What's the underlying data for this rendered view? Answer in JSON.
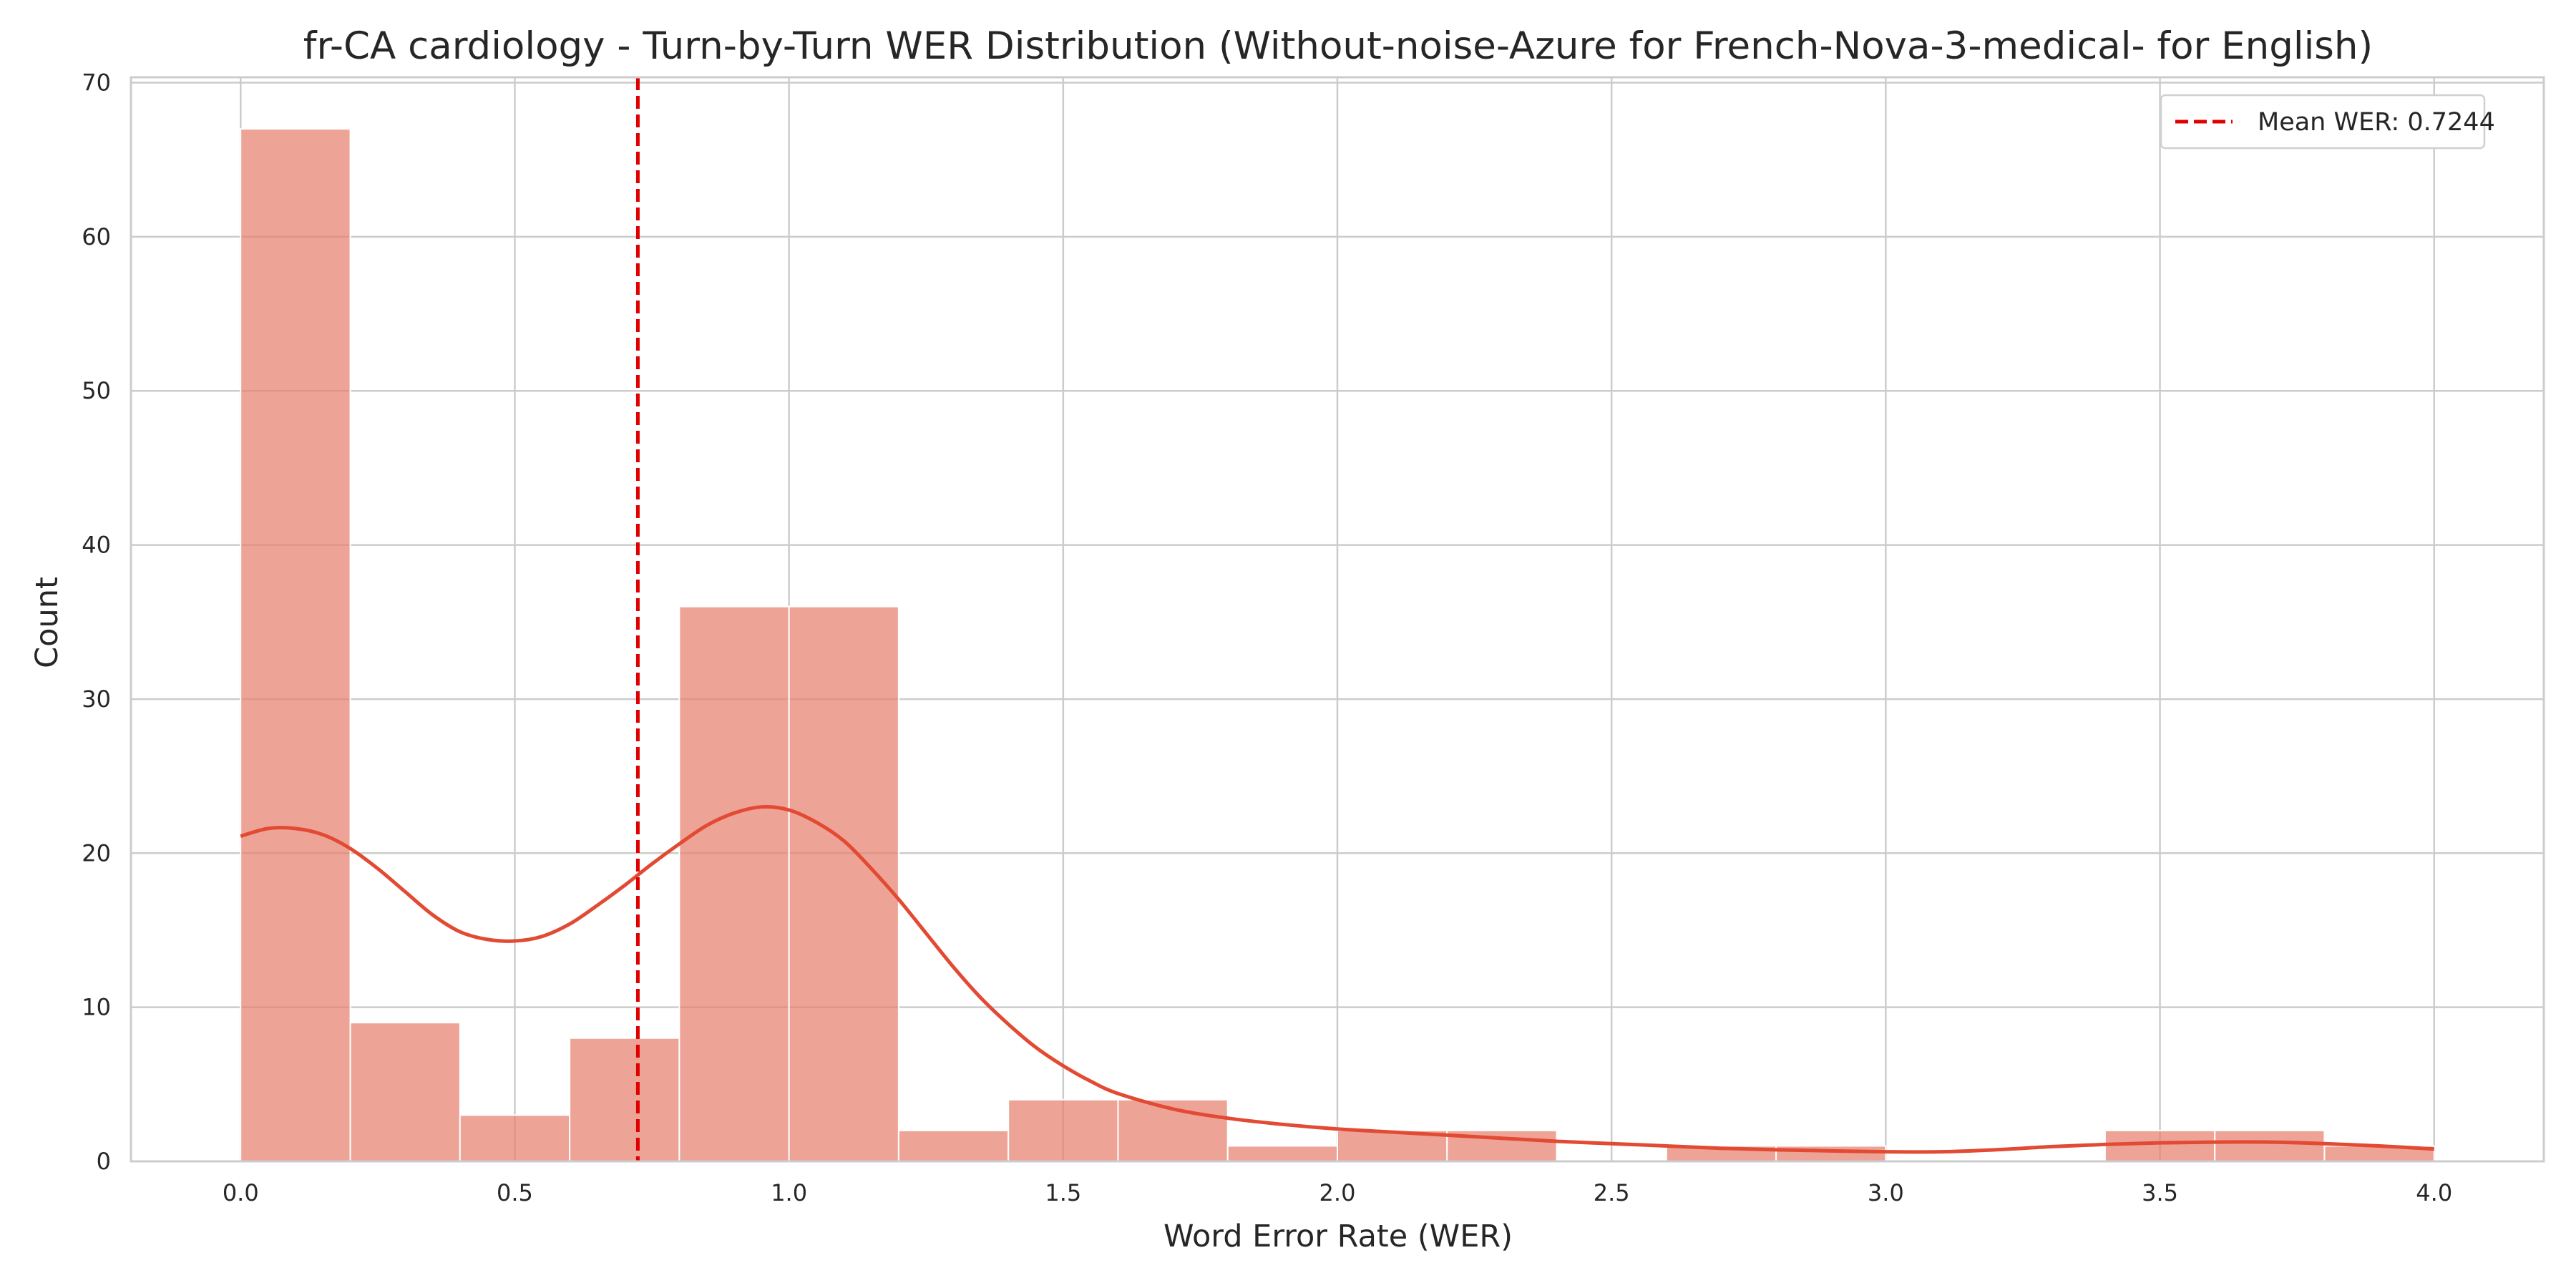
{
  "chart_data": {
    "type": "bar",
    "title": "fr-CA cardiology - Turn-by-Turn WER Distribution (Without-noise-Azure for French-Nova-3-medical- for English)",
    "xlabel": "Word Error Rate (WER)",
    "ylabel": "Count",
    "xlim": [
      -0.2,
      4.2
    ],
    "ylim": [
      0,
      70.35
    ],
    "x_ticks": [
      "0.0",
      "0.5",
      "1.0",
      "1.5",
      "2.0",
      "2.5",
      "3.0",
      "3.5",
      "4.0"
    ],
    "y_ticks": [
      "0",
      "10",
      "20",
      "30",
      "40",
      "50",
      "60",
      "70"
    ],
    "grid": true,
    "bin_width": 0.2,
    "bin_edges": [
      0.0,
      0.2,
      0.4,
      0.6,
      0.8,
      1.0,
      1.2,
      1.4,
      1.6,
      1.8,
      2.0,
      2.2,
      2.4,
      2.6,
      2.8,
      3.0,
      3.2,
      3.4,
      3.6,
      3.8,
      4.0
    ],
    "counts": [
      67,
      9,
      3,
      8,
      36,
      36,
      2,
      4,
      4,
      1,
      2,
      2,
      0,
      1,
      1,
      0,
      0,
      2,
      2,
      1
    ],
    "bar_color": "#e8806f",
    "kde": {
      "color": "#e24a33",
      "points": [
        [
          0.0,
          21.1
        ],
        [
          0.05,
          21.6
        ],
        [
          0.1,
          21.6
        ],
        [
          0.15,
          21.2
        ],
        [
          0.2,
          20.3
        ],
        [
          0.25,
          19.0
        ],
        [
          0.3,
          17.5
        ],
        [
          0.35,
          16.0
        ],
        [
          0.4,
          14.9
        ],
        [
          0.45,
          14.4
        ],
        [
          0.5,
          14.3
        ],
        [
          0.55,
          14.6
        ],
        [
          0.6,
          15.4
        ],
        [
          0.65,
          16.6
        ],
        [
          0.7,
          17.9
        ],
        [
          0.75,
          19.3
        ],
        [
          0.8,
          20.6
        ],
        [
          0.85,
          21.8
        ],
        [
          0.9,
          22.6
        ],
        [
          0.95,
          23.0
        ],
        [
          1.0,
          22.8
        ],
        [
          1.05,
          22.0
        ],
        [
          1.1,
          20.8
        ],
        [
          1.15,
          19.0
        ],
        [
          1.2,
          17.0
        ],
        [
          1.25,
          14.8
        ],
        [
          1.3,
          12.6
        ],
        [
          1.35,
          10.6
        ],
        [
          1.4,
          8.9
        ],
        [
          1.45,
          7.4
        ],
        [
          1.5,
          6.2
        ],
        [
          1.55,
          5.2
        ],
        [
          1.6,
          4.4
        ],
        [
          1.7,
          3.4
        ],
        [
          1.8,
          2.8
        ],
        [
          1.9,
          2.4
        ],
        [
          2.0,
          2.1
        ],
        [
          2.1,
          1.9
        ],
        [
          2.2,
          1.7
        ],
        [
          2.3,
          1.5
        ],
        [
          2.4,
          1.3
        ],
        [
          2.5,
          1.15
        ],
        [
          2.6,
          1.0
        ],
        [
          2.7,
          0.85
        ],
        [
          2.8,
          0.75
        ],
        [
          2.9,
          0.68
        ],
        [
          3.0,
          0.62
        ],
        [
          3.1,
          0.62
        ],
        [
          3.2,
          0.75
        ],
        [
          3.3,
          0.95
        ],
        [
          3.4,
          1.1
        ],
        [
          3.5,
          1.2
        ],
        [
          3.6,
          1.25
        ],
        [
          3.7,
          1.25
        ],
        [
          3.8,
          1.15
        ],
        [
          3.9,
          1.0
        ],
        [
          4.0,
          0.8
        ]
      ]
    },
    "mean_line": {
      "x": 0.7244,
      "color": "#e00000",
      "label": "Mean WER: 0.7244"
    },
    "legend_position": "top-right"
  }
}
